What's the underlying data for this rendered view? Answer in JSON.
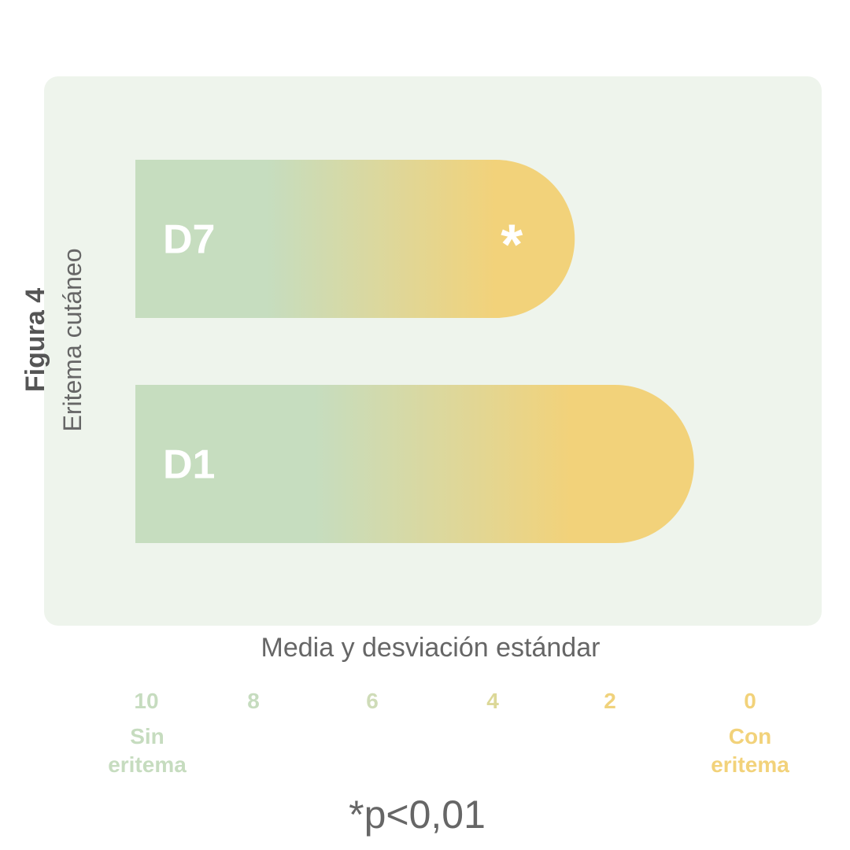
{
  "chart_data": {
    "type": "bar",
    "orientation": "horizontal",
    "figure_label": "Figura 4",
    "ylabel": "Eritema cutáneo",
    "xlabel": "Media y desviación estándar",
    "categories": [
      "D7",
      "D1"
    ],
    "values": [
      2.6,
      0.8
    ],
    "annotations": [
      {
        "category": "D7",
        "text": "*"
      }
    ],
    "footnote": "*p<0,01",
    "x_ticks": [
      "10",
      "8",
      "6",
      "4",
      "2",
      "0"
    ],
    "x_reversed": true,
    "xlim": [
      10,
      0
    ],
    "x_end_labels": {
      "left": "Sin eritema",
      "right": "Con eritema"
    },
    "grid": false,
    "colors": {
      "panel": "#eef4ec",
      "green": "#c6ddbf",
      "yellow": "#f2d27a",
      "tick_colors": [
        "#c6dcbf",
        "#c6dcbf",
        "#cfdcb8",
        "#dcd898",
        "#f0d27c",
        "#f2d27a"
      ],
      "bar_label": "#ffffff",
      "text": "#666666"
    }
  }
}
